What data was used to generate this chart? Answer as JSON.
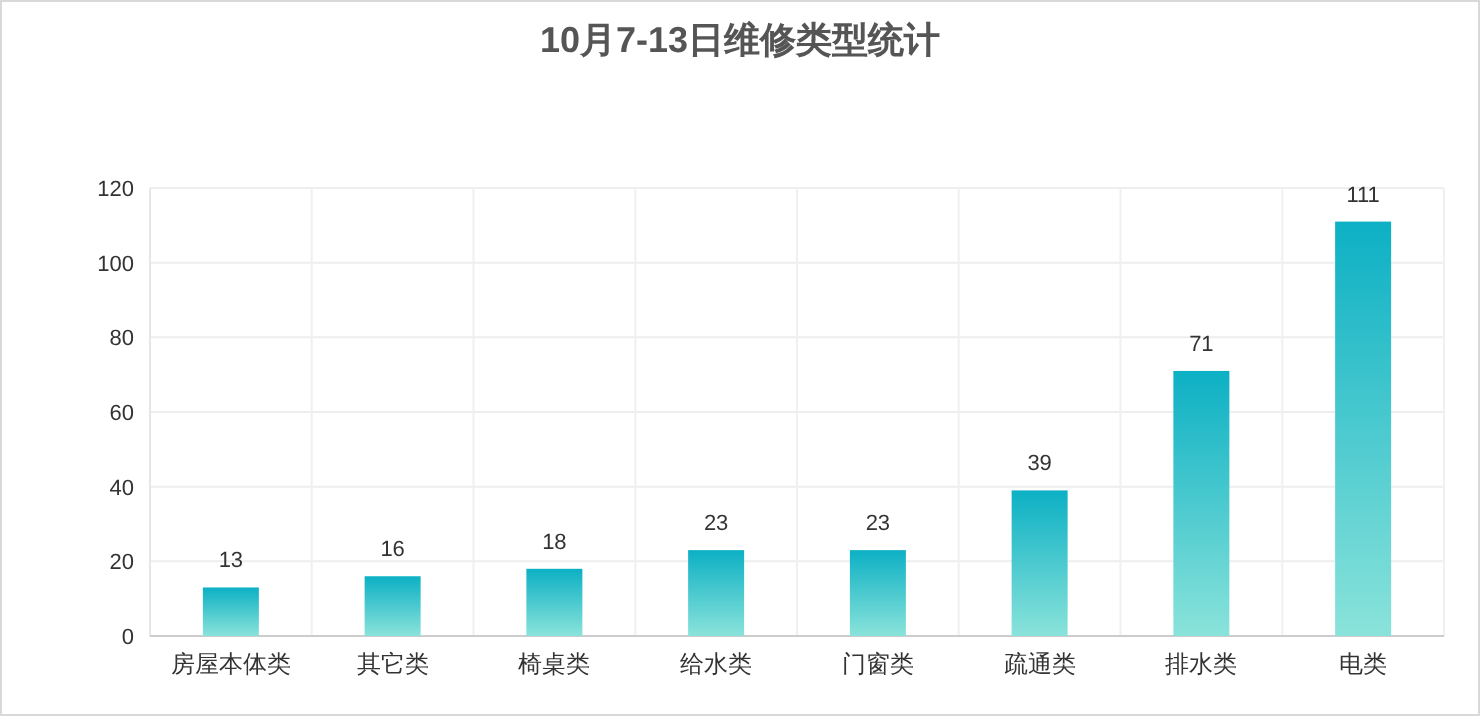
{
  "chart_data": {
    "type": "bar",
    "title": "10月7-13日维修类型统计",
    "categories": [
      "房屋本体类",
      "其它类",
      "椅桌类",
      "给水类",
      "门窗类",
      "疏通类",
      "排水类",
      "电类"
    ],
    "values": [
      13,
      16,
      18,
      23,
      23,
      39,
      71,
      111
    ],
    "color": "#0cb0c4",
    "ylim": [
      0,
      120
    ],
    "yticks": [
      0,
      20,
      40,
      60,
      80,
      100,
      120
    ],
    "grid": true,
    "data_labels": true
  }
}
